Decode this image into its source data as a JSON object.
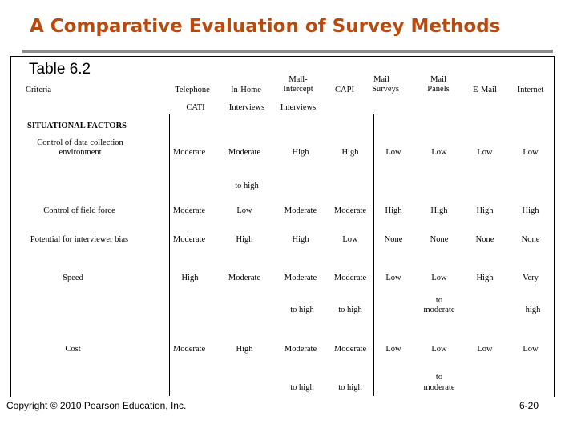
{
  "title": "A Comparative Evaluation of Survey Methods",
  "table_label": "Table 6.2",
  "header": {
    "criteria": "Criteria",
    "telephone": "Telephone",
    "cati": "CATI",
    "in_home": "In-Home",
    "interviews_1": "Interviews",
    "mall_line1": "Mall-",
    "mall_line2": "Intercept",
    "interviews_2": "Interviews",
    "capi": "CAPI",
    "mail_surveys_line1": "Mail",
    "mail_surveys_line2": "Surveys",
    "mail_panels_line1": "Mail",
    "mail_panels_line2": "Panels",
    "email": "E-Mail",
    "internet": "Internet"
  },
  "section_label": "SITUATIONAL FACTORS",
  "rows": {
    "control_env": {
      "label_line1": "Control of data collection",
      "label_line2": "environment",
      "telephone": "Moderate",
      "in_home": "Moderate",
      "in_home_cont": "to high",
      "mall": "High",
      "capi": "High",
      "mail_surveys": "Low",
      "mail_panels": "Low",
      "email": "Low",
      "internet": "Low"
    },
    "field_force": {
      "label": "Control of field force",
      "telephone": "Moderate",
      "in_home": "Low",
      "mall": "Moderate",
      "capi": "Moderate",
      "mail_surveys": "High",
      "mail_panels": "High",
      "email": "High",
      "internet": "High"
    },
    "interviewer_bias": {
      "label": "Potential for interviewer bias",
      "telephone": "Moderate",
      "in_home": "High",
      "mall": "High",
      "capi": "Low",
      "mail_surveys": "None",
      "mail_panels": "None",
      "email": "None",
      "internet": "None"
    },
    "speed": {
      "label": "Speed",
      "telephone": "High",
      "in_home": "Moderate",
      "mall": "Moderate",
      "mall_cont": "to high",
      "capi": "Moderate",
      "capi_cont": "to high",
      "mail_surveys": "Low",
      "mail_panels": "Low",
      "mail_panels_cont1": "to",
      "mail_panels_cont2": "moderate",
      "email": "High",
      "internet": "Very",
      "internet_cont": "high"
    },
    "cost": {
      "label": "Cost",
      "telephone": "Moderate",
      "in_home": "High",
      "mall": "Moderate",
      "mall_cont": "to high",
      "capi": "Moderate",
      "capi_cont": "to high",
      "mail_surveys": "Low",
      "mail_panels": "Low",
      "mail_panels_cont1": "to",
      "mail_panels_cont2": "moderate",
      "email": "Low",
      "internet": "Low"
    }
  },
  "footer": {
    "copyright": "Copyright © 2010 Pearson Education, Inc.",
    "page": "6-20"
  }
}
